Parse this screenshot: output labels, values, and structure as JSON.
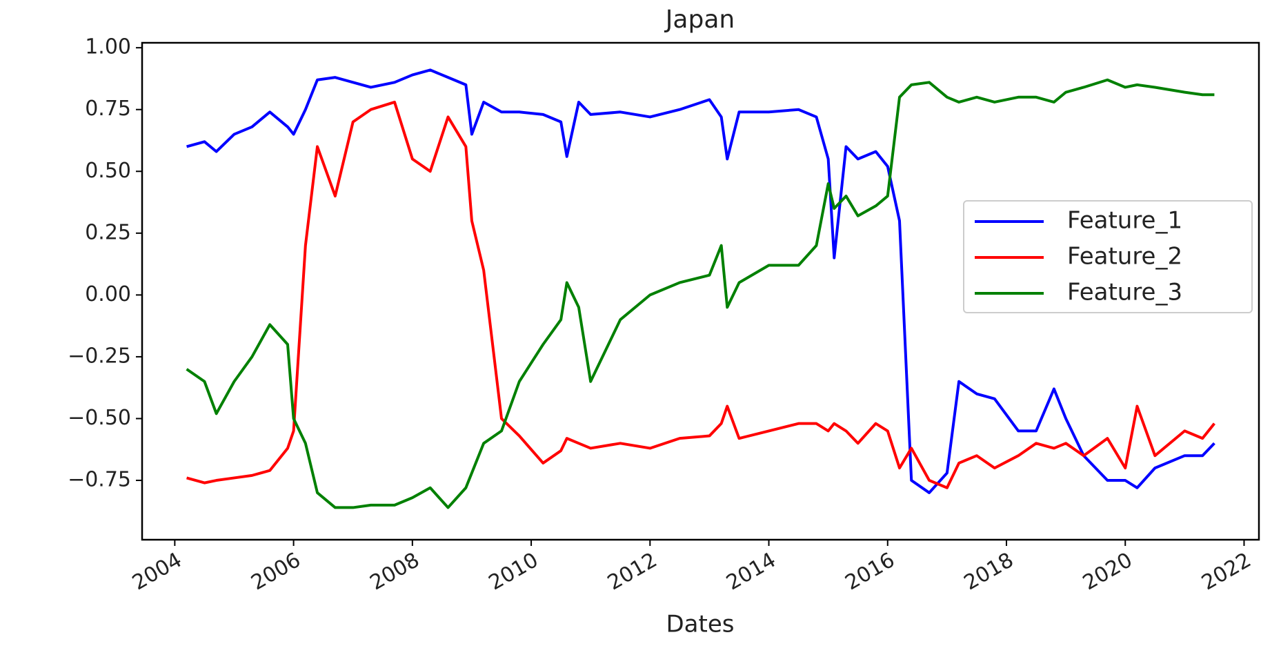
{
  "chart_data": {
    "type": "line",
    "title": "Japan",
    "x_label": "Dates",
    "x": [
      2004.2,
      2004.5,
      2004.7,
      2005.0,
      2005.3,
      2005.6,
      2005.9,
      2006.0,
      2006.2,
      2006.4,
      2006.7,
      2007.0,
      2007.3,
      2007.7,
      2008.0,
      2008.3,
      2008.6,
      2008.9,
      2009.0,
      2009.2,
      2009.5,
      2009.8,
      2010.2,
      2010.5,
      2010.6,
      2010.8,
      2011.0,
      2011.5,
      2012.0,
      2012.5,
      2013.0,
      2013.2,
      2013.3,
      2013.5,
      2014.0,
      2014.5,
      2014.8,
      2015.0,
      2015.1,
      2015.3,
      2015.5,
      2015.8,
      2016.0,
      2016.2,
      2016.4,
      2016.7,
      2017.0,
      2017.2,
      2017.5,
      2017.8,
      2018.2,
      2018.5,
      2018.8,
      2019.0,
      2019.3,
      2019.7,
      2020.0,
      2020.2,
      2020.5,
      2021.0,
      2021.3,
      2021.5
    ],
    "series": [
      {
        "name": "Feature_1",
        "color": "#0000ff",
        "values": [
          0.6,
          0.62,
          0.58,
          0.65,
          0.68,
          0.74,
          0.68,
          0.65,
          0.75,
          0.87,
          0.88,
          0.86,
          0.84,
          0.86,
          0.89,
          0.91,
          0.88,
          0.85,
          0.65,
          0.78,
          0.74,
          0.74,
          0.73,
          0.7,
          0.56,
          0.78,
          0.73,
          0.74,
          0.72,
          0.75,
          0.79,
          0.72,
          0.55,
          0.74,
          0.74,
          0.75,
          0.72,
          0.55,
          0.15,
          0.6,
          0.55,
          0.58,
          0.52,
          0.3,
          -0.75,
          -0.8,
          -0.72,
          -0.35,
          -0.4,
          -0.42,
          -0.55,
          -0.55,
          -0.38,
          -0.5,
          -0.65,
          -0.75,
          -0.75,
          -0.78,
          -0.7,
          -0.65,
          -0.65,
          -0.6
        ]
      },
      {
        "name": "Feature_2",
        "color": "#ff0000",
        "values": [
          -0.74,
          -0.76,
          -0.75,
          -0.74,
          -0.73,
          -0.71,
          -0.62,
          -0.55,
          0.2,
          0.6,
          0.4,
          0.7,
          0.75,
          0.78,
          0.55,
          0.5,
          0.72,
          0.6,
          0.3,
          0.1,
          -0.5,
          -0.57,
          -0.68,
          -0.63,
          -0.58,
          -0.6,
          -0.62,
          -0.6,
          -0.62,
          -0.58,
          -0.57,
          -0.52,
          -0.45,
          -0.58,
          -0.55,
          -0.52,
          -0.52,
          -0.55,
          -0.52,
          -0.55,
          -0.6,
          -0.52,
          -0.55,
          -0.7,
          -0.62,
          -0.75,
          -0.78,
          -0.68,
          -0.65,
          -0.7,
          -0.65,
          -0.6,
          -0.62,
          -0.6,
          -0.65,
          -0.58,
          -0.7,
          -0.45,
          -0.65,
          -0.55,
          -0.58,
          -0.52
        ]
      },
      {
        "name": "Feature_3",
        "color": "#008000",
        "values": [
          -0.3,
          -0.35,
          -0.48,
          -0.35,
          -0.25,
          -0.12,
          -0.2,
          -0.5,
          -0.6,
          -0.8,
          -0.86,
          -0.86,
          -0.85,
          -0.85,
          -0.82,
          -0.78,
          -0.86,
          -0.78,
          -0.72,
          -0.6,
          -0.55,
          -0.35,
          -0.2,
          -0.1,
          0.05,
          -0.05,
          -0.35,
          -0.1,
          0.0,
          0.05,
          0.08,
          0.2,
          -0.05,
          0.05,
          0.12,
          0.12,
          0.2,
          0.45,
          0.35,
          0.4,
          0.32,
          0.36,
          0.4,
          0.8,
          0.85,
          0.86,
          0.8,
          0.78,
          0.8,
          0.78,
          0.8,
          0.8,
          0.78,
          0.82,
          0.84,
          0.87,
          0.84,
          0.85,
          0.84,
          0.82,
          0.81,
          0.81
        ]
      }
    ],
    "xlim": [
      2003.45,
      2022.25
    ],
    "ylim": [
      -0.99,
      1.02
    ],
    "xticks": [
      2004,
      2006,
      2008,
      2010,
      2012,
      2014,
      2016,
      2018,
      2020,
      2022
    ],
    "yticks": [
      {
        "value": -0.75,
        "label": "−0.75"
      },
      {
        "value": -0.5,
        "label": "−0.50"
      },
      {
        "value": -0.25,
        "label": "−0.25"
      },
      {
        "value": 0,
        "label": "0.00"
      },
      {
        "value": 0.25,
        "label": "0.25"
      },
      {
        "value": 0.5,
        "label": "0.50"
      },
      {
        "value": 0.75,
        "label": "0.75"
      },
      {
        "value": 1,
        "label": "1.00"
      }
    ],
    "legend": "center right"
  }
}
